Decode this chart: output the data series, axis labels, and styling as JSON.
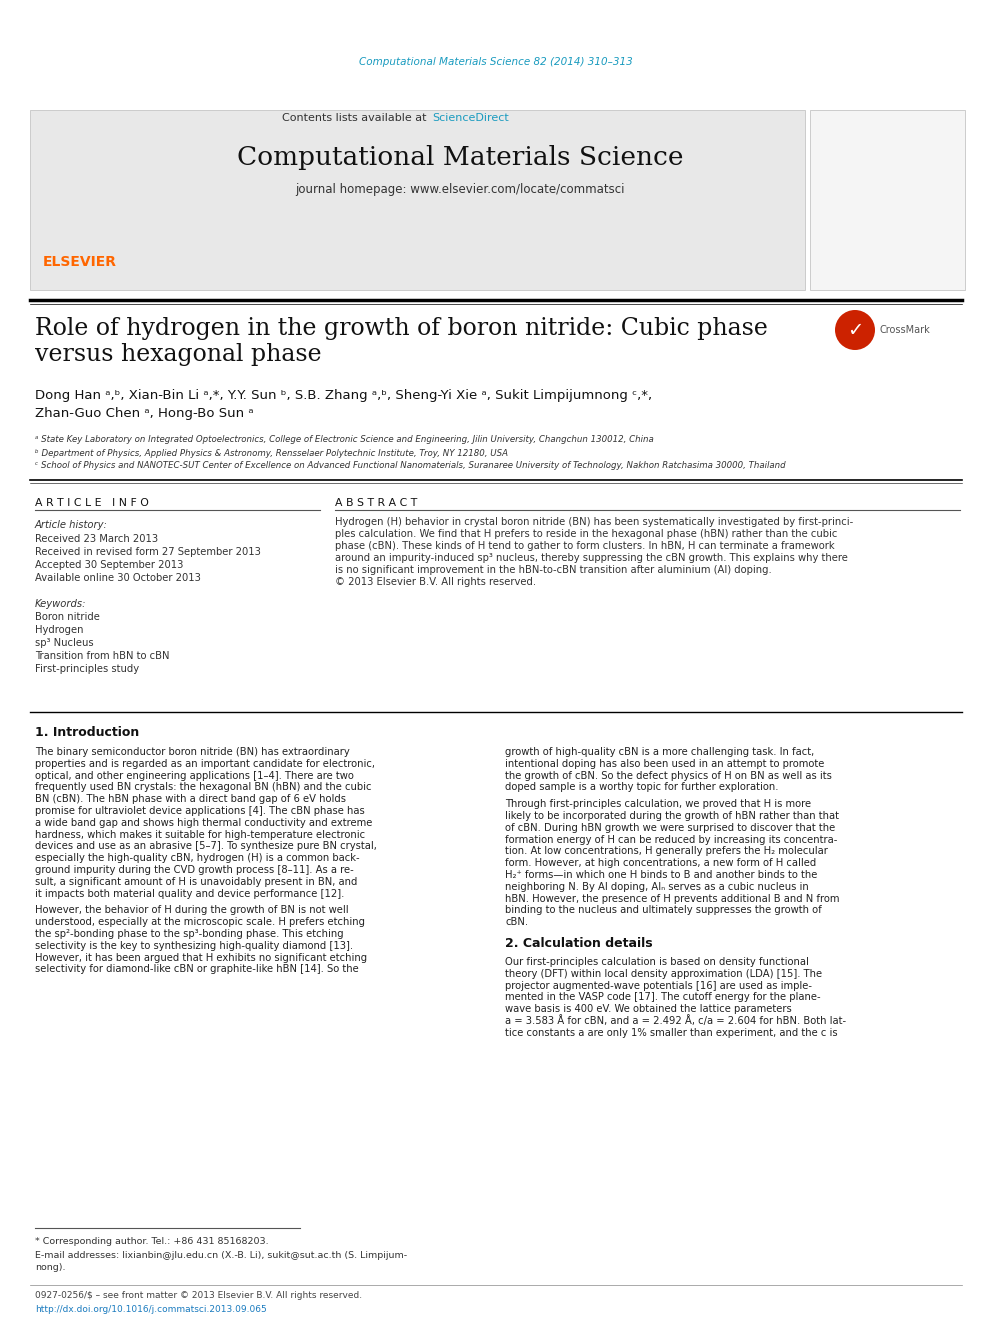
{
  "page_background": "#ffffff",
  "top_journal_ref": "Computational Materials Science 82 (2014) 310–313",
  "top_journal_ref_color": "#1a9bbf",
  "header_bg": "#e8e8e8",
  "header_sciencedirect_color": "#1a9bbf",
  "journal_title": "Computational Materials Science",
  "journal_homepage": "journal homepage: www.elsevier.com/locate/commatsci",
  "paper_title_line1": "Role of hydrogen in the growth of boron nitride: Cubic phase",
  "paper_title_line2": "versus hexagonal phase",
  "authors_line1": "Dong Han ᵃ,ᵇ, Xian-Bin Li ᵃ,*, Y.Y. Sun ᵇ, S.B. Zhang ᵃ,ᵇ, Sheng-Yi Xie ᵃ, Sukit Limpijumnong ᶜ,*,",
  "authors_line2": "Zhan-Guo Chen ᵃ, Hong-Bo Sun ᵃ",
  "affil_a": "ᵃ State Key Laboratory on Integrated Optoelectronics, College of Electronic Science and Engineering, Jilin University, Changchun 130012, China",
  "affil_b": "ᵇ Department of Physics, Applied Physics & Astronomy, Rensselaer Polytechnic Institute, Troy, NY 12180, USA",
  "affil_c": "ᶜ School of Physics and NANOTEC-SUT Center of Excellence on Advanced Functional Nanomaterials, Suranaree University of Technology, Nakhon Ratchasima 30000, Thailand",
  "article_info_title": "A R T I C L E   I N F O",
  "abstract_title": "A B S T R A C T",
  "article_history_label": "Article history:",
  "received": "Received 23 March 2013",
  "received_revised": "Received in revised form 27 September 2013",
  "accepted": "Accepted 30 September 2013",
  "available": "Available online 30 October 2013",
  "keywords_label": "Keywords:",
  "keywords": [
    "Boron nitride",
    "Hydrogen",
    "sp³ Nucleus",
    "Transition from hBN to cBN",
    "First-principles study"
  ],
  "abstract_lines": [
    "Hydrogen (H) behavior in crystal boron nitride (BN) has been systematically investigated by first-princi-",
    "ples calculation. We find that H prefers to reside in the hexagonal phase (hBN) rather than the cubic",
    "phase (cBN). These kinds of H tend to gather to form clusters. In hBN, H can terminate a framework",
    "around an impurity-induced sp³ nucleus, thereby suppressing the cBN growth. This explains why there",
    "is no significant improvement in the hBN-to-cBN transition after aluminium (Al) doping.",
    "© 2013 Elsevier B.V. All rights reserved."
  ],
  "section1_title": "1. Introduction",
  "intro_left_lines": [
    "The binary semiconductor boron nitride (BN) has extraordinary",
    "properties and is regarded as an important candidate for electronic,",
    "optical, and other engineering applications [1–4]. There are two",
    "frequently used BN crystals: the hexagonal BN (hBN) and the cubic",
    "BN (cBN). The hBN phase with a direct band gap of 6 eV holds",
    "promise for ultraviolet device applications [4]. The cBN phase has",
    "a wide band gap and shows high thermal conductivity and extreme",
    "hardness, which makes it suitable for high-temperature electronic",
    "devices and use as an abrasive [5–7]. To synthesize pure BN crystal,",
    "especially the high-quality cBN, hydrogen (H) is a common back-",
    "ground impurity during the CVD growth process [8–11]. As a re-",
    "sult, a significant amount of H is unavoidably present in BN, and",
    "it impacts both material quality and device performance [12].",
    "",
    "However, the behavior of H during the growth of BN is not well",
    "understood, especially at the microscopic scale. H prefers etching",
    "the sp²-bonding phase to the sp³-bonding phase. This etching",
    "selectivity is the key to synthesizing high-quality diamond [13].",
    "However, it has been argued that H exhibits no significant etching",
    "selectivity for diamond-like cBN or graphite-like hBN [14]. So the"
  ],
  "intro_right_lines": [
    "growth of high-quality cBN is a more challenging task. In fact,",
    "intentional doping has also been used in an attempt to promote",
    "the growth of cBN. So the defect physics of H on BN as well as its",
    "doped sample is a worthy topic for further exploration.",
    "",
    "Through first-principles calculation, we proved that H is more",
    "likely to be incorporated during the growth of hBN rather than that",
    "of cBN. During hBN growth we were surprised to discover that the",
    "formation energy of H can be reduced by increasing its concentra-",
    "tion. At low concentrations, H generally prefers the H₂ molecular",
    "form. However, at high concentrations, a new form of H called",
    "H₂⁺ forms—in which one H binds to B and another binds to the",
    "neighboring N. By Al doping, Alₙ serves as a cubic nucleus in",
    "hBN. However, the presence of H prevents additional B and N from",
    "binding to the nucleus and ultimately suppresses the growth of",
    "cBN."
  ],
  "section2_title": "2. Calculation details",
  "calc_right_lines": [
    "Our first-principles calculation is based on density functional",
    "theory (DFT) within local density approximation (LDA) [15]. The",
    "projector augmented-wave potentials [16] are used as imple-",
    "mented in the VASP code [17]. The cutoff energy for the plane-",
    "wave basis is 400 eV. We obtained the lattice parameters",
    "a = 3.583 Å for cBN, and a = 2.492 Å, c/a = 2.604 for hBN. Both lat-",
    "tice constants a are only 1% smaller than experiment, and the c is"
  ],
  "footnote_star": "* Corresponding author. Tel.: +86 431 85168203.",
  "footnote_email": "E-mail addresses: lixianbin@jlu.edu.cn (X.-B. Li), sukit@sut.ac.th (S. Limpijum-",
  "footnote_email2": "nong).",
  "footer_issn": "0927-0256/$ – see front matter © 2013 Elsevier B.V. All rights reserved.",
  "footer_doi": "http://dx.doi.org/10.1016/j.commatsci.2013.09.065",
  "elsevier_color": "#ff6600",
  "crossmark_color": "#cc2200"
}
